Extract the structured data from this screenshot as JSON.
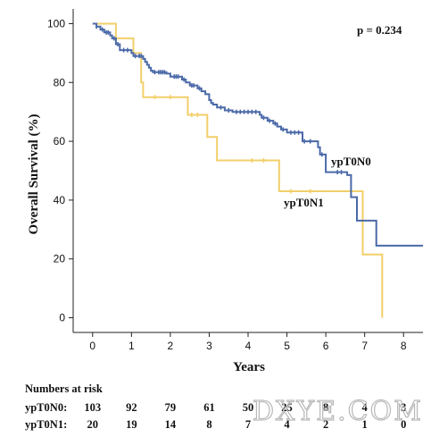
{
  "chart_data": {
    "type": "line",
    "xlabel": "Years",
    "ylabel": "Overall Survival (%)",
    "xlim": [
      -0.5,
      8.5
    ],
    "ylim": [
      -5,
      105
    ],
    "x_ticks": [
      0,
      1,
      2,
      3,
      4,
      5,
      6,
      7,
      8
    ],
    "y_ticks": [
      0,
      20,
      40,
      60,
      80,
      100
    ],
    "grid": false,
    "step": true,
    "annotations": {
      "p_value": "p = 0.234"
    },
    "series": [
      {
        "name": "ypT0N0",
        "color": "#4a69a8",
        "points": [
          [
            0,
            100
          ],
          [
            0.1,
            99
          ],
          [
            0.2,
            98
          ],
          [
            0.3,
            97
          ],
          [
            0.45,
            96
          ],
          [
            0.5,
            95
          ],
          [
            0.6,
            93
          ],
          [
            0.7,
            91
          ],
          [
            1.0,
            90
          ],
          [
            1.05,
            89
          ],
          [
            1.3,
            88
          ],
          [
            1.35,
            87
          ],
          [
            1.4,
            86
          ],
          [
            1.45,
            85
          ],
          [
            1.5,
            84
          ],
          [
            1.55,
            83.5
          ],
          [
            1.9,
            83
          ],
          [
            2.0,
            82
          ],
          [
            2.3,
            81
          ],
          [
            2.4,
            80
          ],
          [
            2.5,
            79
          ],
          [
            2.7,
            78
          ],
          [
            2.8,
            77
          ],
          [
            2.9,
            76
          ],
          [
            3.0,
            74
          ],
          [
            3.05,
            73
          ],
          [
            3.1,
            72.5
          ],
          [
            3.2,
            71.5
          ],
          [
            3.4,
            70.5
          ],
          [
            3.6,
            70
          ],
          [
            4.3,
            69
          ],
          [
            4.35,
            68
          ],
          [
            4.5,
            67
          ],
          [
            4.65,
            66
          ],
          [
            4.75,
            65
          ],
          [
            4.85,
            64
          ],
          [
            5.0,
            63
          ],
          [
            5.4,
            60
          ],
          [
            5.8,
            58
          ],
          [
            5.85,
            55.5
          ],
          [
            6.0,
            49.5
          ],
          [
            6.55,
            48.5
          ],
          [
            6.65,
            41
          ],
          [
            6.8,
            33
          ],
          [
            7.3,
            24.5
          ],
          [
            8.5,
            24.5
          ]
        ],
        "censor_x": [
          0.1,
          0.25,
          0.35,
          0.4,
          0.55,
          0.65,
          0.8,
          0.9,
          1.1,
          1.2,
          1.25,
          1.6,
          1.7,
          1.75,
          1.8,
          1.85,
          2.1,
          2.15,
          2.2,
          2.35,
          2.55,
          2.6,
          2.75,
          3.3,
          3.5,
          3.7,
          3.8,
          3.9,
          4.0,
          4.1,
          4.2,
          4.4,
          4.55,
          4.7,
          4.9,
          5.1,
          5.2,
          5.3,
          5.45,
          5.6,
          5.9,
          6.3,
          6.4
        ]
      },
      {
        "name": "ypT0N1",
        "color": "#f2cf6a",
        "points": [
          [
            0,
            100
          ],
          [
            0.6,
            95
          ],
          [
            1.05,
            90
          ],
          [
            1.25,
            80
          ],
          [
            1.3,
            75
          ],
          [
            2.45,
            69
          ],
          [
            2.95,
            61.5
          ],
          [
            3.2,
            53.5
          ],
          [
            4.8,
            43
          ],
          [
            6.95,
            21.5
          ],
          [
            7.45,
            0
          ]
        ],
        "censor_x": [
          1.6,
          2.0,
          2.55,
          2.7,
          4.1,
          4.4,
          5.1,
          5.6
        ]
      }
    ],
    "risk_table": {
      "title": "Numbers at risk",
      "time_points": [
        0,
        1,
        2,
        3,
        4,
        5,
        6,
        7,
        8
      ],
      "rows": [
        {
          "label": "ypT0N0:",
          "values": [
            "103",
            "92",
            "79",
            "61",
            "50",
            "25",
            "8",
            "4",
            "3"
          ]
        },
        {
          "label": "ypT0N1:",
          "values": [
            "20",
            "19",
            "14",
            "8",
            "7",
            "4",
            "2",
            "1",
            "0"
          ]
        }
      ]
    }
  },
  "watermark": "DXYE.COM"
}
